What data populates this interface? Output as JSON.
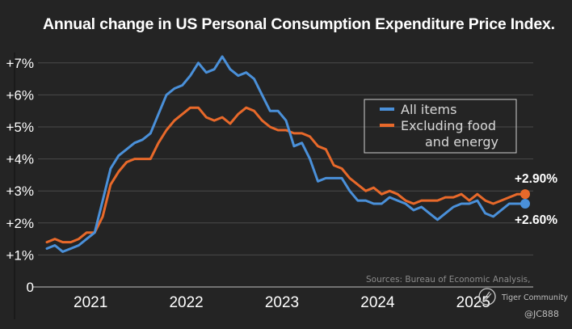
{
  "chart_data": {
    "type": "line",
    "title": "Annual change in US Personal Consumption Expenditure Price Index.",
    "xlabel": "",
    "ylabel": "",
    "ylim": [
      0,
      7
    ],
    "yticks": [
      {
        "value": 0,
        "label": "0"
      },
      {
        "value": 1,
        "label": "+1%"
      },
      {
        "value": 2,
        "label": "+2%"
      },
      {
        "value": 3,
        "label": "+3%"
      },
      {
        "value": 4,
        "label": "+4%"
      },
      {
        "value": 5,
        "label": "+5%"
      },
      {
        "value": 6,
        "label": "+6%"
      },
      {
        "value": 7,
        "label": "+7%"
      }
    ],
    "xrange_months": [
      "2020-07",
      "2025-07"
    ],
    "xticks": [
      {
        "month_index": 6,
        "label": "2021"
      },
      {
        "month_index": 18,
        "label": "2022"
      },
      {
        "month_index": 30,
        "label": "2023"
      },
      {
        "month_index": 42,
        "label": "2024"
      },
      {
        "month_index": 54,
        "label": "2025"
      }
    ],
    "grid": true,
    "legend_position": "right",
    "series": [
      {
        "name": "All items",
        "color": "#4a90d9",
        "values": [
          1.2,
          1.3,
          1.1,
          1.2,
          1.3,
          1.5,
          1.7,
          2.7,
          3.7,
          4.1,
          4.3,
          4.5,
          4.6,
          4.8,
          5.4,
          6.0,
          6.2,
          6.3,
          6.6,
          7.0,
          6.7,
          6.8,
          7.2,
          6.8,
          6.6,
          6.7,
          6.5,
          6.0,
          5.5,
          5.5,
          5.2,
          4.4,
          4.5,
          4.0,
          3.3,
          3.4,
          3.4,
          3.4,
          3.0,
          2.7,
          2.7,
          2.6,
          2.6,
          2.8,
          2.7,
          2.6,
          2.4,
          2.5,
          2.3,
          2.1,
          2.3,
          2.5,
          2.6,
          2.6,
          2.7,
          2.3,
          2.2,
          2.4,
          2.6,
          2.6,
          2.6
        ],
        "end_label": "+2.60%"
      },
      {
        "name": "Excluding food and energy",
        "name_lines": [
          "Excluding food",
          "and energy"
        ],
        "color": "#e8692a",
        "values": [
          1.4,
          1.5,
          1.4,
          1.4,
          1.5,
          1.7,
          1.7,
          2.2,
          3.2,
          3.6,
          3.9,
          4.0,
          4.0,
          4.0,
          4.5,
          4.9,
          5.2,
          5.4,
          5.6,
          5.6,
          5.3,
          5.2,
          5.3,
          5.1,
          5.4,
          5.6,
          5.5,
          5.2,
          5.0,
          4.9,
          4.9,
          4.8,
          4.8,
          4.7,
          4.4,
          4.3,
          3.8,
          3.7,
          3.4,
          3.2,
          3.0,
          3.1,
          2.9,
          3.0,
          2.9,
          2.7,
          2.6,
          2.7,
          2.7,
          2.7,
          2.8,
          2.8,
          2.9,
          2.7,
          2.9,
          2.7,
          2.6,
          2.7,
          2.8,
          2.9,
          2.9
        ],
        "end_label": "+2.90%"
      }
    ],
    "annotations": {
      "source": "Sources: Bureau of Economic Analysis,",
      "watermark": "Tiger Community",
      "handle": "@JC888"
    }
  },
  "colors": {
    "background": "#242424",
    "grid": "#4a4a4a",
    "baseline": "#8c8c8c"
  }
}
